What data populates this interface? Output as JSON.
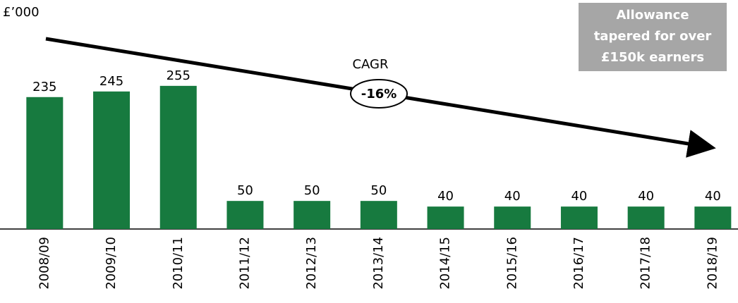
{
  "chart_data": {
    "type": "bar",
    "y_label": "£’000",
    "categories": [
      "2008/09",
      "2009/10",
      "2010/11",
      "2011/12",
      "2012/13",
      "2013/14",
      "2014/15",
      "2015/16",
      "2016/17",
      "2017/18",
      "2018/19"
    ],
    "values": [
      235,
      245,
      255,
      50,
      50,
      50,
      40,
      40,
      40,
      40,
      40
    ],
    "color": "#177a3f",
    "ylim": [
      0,
      300
    ],
    "trend_label": "CAGR",
    "trend_value": "-16%",
    "note": [
      "Allowance",
      "tapered for over",
      "£150k earners"
    ]
  }
}
